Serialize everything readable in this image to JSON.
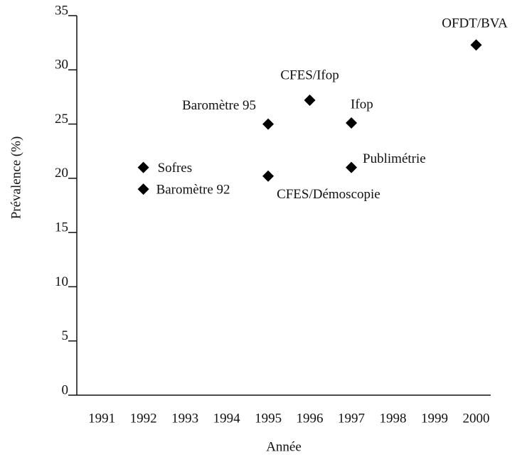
{
  "chart_data": {
    "type": "scatter",
    "x_label": "Année",
    "y_label": "Prévalence (%)",
    "series": [
      {
        "name": null,
        "color": "#000000",
        "x": [
          1992,
          1992,
          1995,
          1995,
          1996,
          1997,
          1997,
          2000
        ],
        "values": [
          21,
          19,
          25,
          20.2,
          27.2,
          25.1,
          21,
          32.3
        ],
        "labels": [
          "Sofres",
          "Baromètre 92",
          "Baromètre 95",
          "CFES/Démoscopie",
          "CFES/Ifop",
          "Ifop",
          "Publimétrie",
          "OFDT/BVA"
        ]
      }
    ],
    "xlim": [
      1990.4,
      2000.35
    ],
    "xticks": [
      1991,
      1992,
      1993,
      1994,
      1995,
      1996,
      1997,
      1998,
      1999,
      2000
    ],
    "ylim": [
      0,
      35
    ],
    "yticks": [
      0,
      5,
      10,
      15,
      20,
      25,
      30,
      35
    ],
    "grid": false
  }
}
